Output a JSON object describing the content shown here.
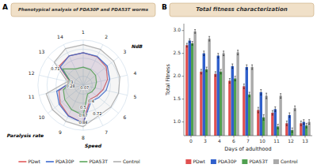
{
  "chart_data": [
    {
      "type": "radar",
      "panel": "A",
      "title": "Phenotypical analysis of PDA30P and PDA53T worms",
      "categories": [
        "1",
        "2",
        "3",
        "4",
        "5",
        "6",
        "7",
        "8",
        "9",
        "10",
        "11",
        "12",
        "13",
        "14"
      ],
      "series": [
        {
          "name": "PDwt",
          "color": "#e05050",
          "values": [
            0.72,
            0.7,
            0.65,
            0.55,
            0.45,
            0.38,
            0.35,
            0.84,
            0.75,
            0.65,
            0.55,
            0.3,
            0.68,
            0.72
          ]
        },
        {
          "name": "PDA30P",
          "color": "#3060cc",
          "values": [
            0.72,
            0.71,
            0.68,
            0.6,
            0.52,
            0.44,
            0.4,
            0.84,
            0.76,
            0.68,
            0.6,
            0.28,
            0.65,
            0.72
          ]
        },
        {
          "name": "PDA53T",
          "color": "#50a050",
          "values": [
            0.4,
            0.38,
            0.35,
            0.3,
            0.27,
            0.24,
            0.22,
            0.67,
            0.6,
            0.52,
            0.45,
            0.28,
            0.58,
            0.4
          ]
        },
        {
          "name": "Control",
          "color": "#aaaaaa",
          "values": [
            0.9,
            0.88,
            0.86,
            0.83,
            0.8,
            0.78,
            0.76,
            0.92,
            0.89,
            0.87,
            0.84,
            0.36,
            0.82,
            0.9
          ]
        }
      ],
      "ylim": [
        0,
        1.05
      ],
      "yticks": [
        0.2,
        0.4,
        0.6,
        0.8,
        1.0
      ],
      "grid": true,
      "tick_labels": "x",
      "legend": "bottom",
      "annotations": [
        {
          "text": "0.07",
          "value": 0.07
        },
        {
          "text": "0.4",
          "value": 0.4
        },
        {
          "text": "0.72",
          "value": 0.72
        },
        {
          "text": "0.5",
          "value": 0.5
        },
        {
          "text": "0.67",
          "value": 0.67
        },
        {
          "text": "0.84",
          "value": 0.84
        },
        {
          "text": "0.3",
          "value": 0.3
        },
        {
          "text": "0.28",
          "value": 0.28
        },
        {
          "text": "0.71",
          "value": 0.71
        },
        {
          "text": "Speed"
        },
        {
          "text": "NdB"
        },
        {
          "text": "Paralysis rate"
        }
      ]
    },
    {
      "type": "bar",
      "panel": "B",
      "title": "Total fitness characterization",
      "xlabel": "Days of adulthood",
      "ylabel": "Total Fitness",
      "categories": [
        "0",
        "3",
        "4",
        "6",
        "7",
        "10",
        "11",
        "12",
        "13"
      ],
      "series": [
        {
          "name": "PDwt",
          "color": "#e05050",
          "values": [
            2.68,
            2.1,
            2.05,
            1.9,
            1.78,
            1.26,
            1.2,
            0.97,
            0.97
          ],
          "errors": [
            0.04,
            0.05,
            0.05,
            0.05,
            0.05,
            0.06,
            0.05,
            0.05,
            0.05
          ]
        },
        {
          "name": "PDA30P",
          "color": "#3060cc",
          "values": [
            2.78,
            2.5,
            2.45,
            2.22,
            2.2,
            1.65,
            1.28,
            1.15,
            1.0
          ],
          "errors": [
            0.04,
            0.05,
            0.05,
            0.05,
            0.05,
            0.06,
            0.05,
            0.05,
            0.05
          ]
        },
        {
          "name": "PDA53T",
          "color": "#50a050",
          "values": [
            2.72,
            2.15,
            2.1,
            1.95,
            1.6,
            1.1,
            0.9,
            0.82,
            0.92
          ],
          "errors": [
            0.04,
            0.05,
            0.05,
            0.05,
            0.05,
            0.06,
            0.05,
            0.05,
            0.05
          ]
        },
        {
          "name": "Control",
          "color": "#aaaaaa",
          "values": [
            2.98,
            2.82,
            2.5,
            2.52,
            2.2,
            1.57,
            1.57,
            1.3,
            1.0
          ],
          "errors": [
            0.04,
            0.05,
            0.05,
            0.05,
            0.05,
            0.06,
            0.05,
            0.05,
            0.05
          ]
        }
      ],
      "ylim": [
        0.7,
        3.15
      ],
      "yticks": [
        {
          "value": 1.0,
          "label": "1.0"
        },
        1.5,
        {
          "value": 2.0,
          "label": "2.0"
        },
        2.5,
        {
          "value": 3.0,
          "label": "3.0"
        }
      ],
      "grid": false,
      "legend": "bottom"
    }
  ]
}
